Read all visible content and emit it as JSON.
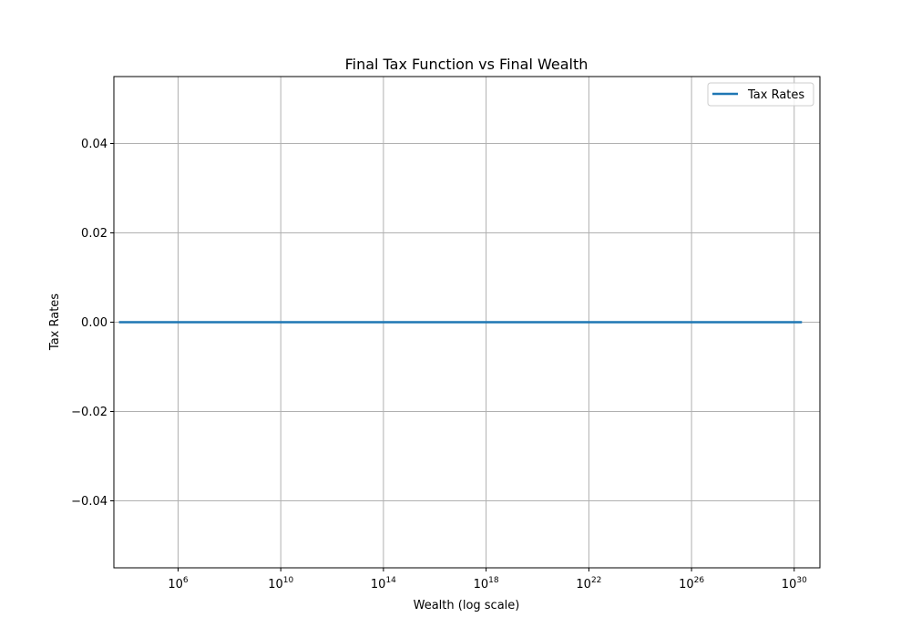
{
  "chart_data": {
    "type": "line",
    "title": "Final Tax Function vs Final Wealth",
    "xlabel": "Wealth (log scale)",
    "ylabel": "Tax Rates",
    "xscale": "log",
    "xlim": [
      3160.0,
      1e+31
    ],
    "ylim": [
      -0.055,
      0.055
    ],
    "x_ticks": [
      {
        "value": 1000000.0,
        "base": "10",
        "exp": "6"
      },
      {
        "value": 10000000000.0,
        "base": "10",
        "exp": "10"
      },
      {
        "value": 100000000000000.0,
        "base": "10",
        "exp": "14"
      },
      {
        "value": 1e+18,
        "base": "10",
        "exp": "18"
      },
      {
        "value": 1e+22,
        "base": "10",
        "exp": "22"
      },
      {
        "value": 1e+26,
        "base": "10",
        "exp": "26"
      },
      {
        "value": 1e+30,
        "base": "10",
        "exp": "30"
      }
    ],
    "y_ticks": [
      {
        "value": 0.04,
        "label": "0.04"
      },
      {
        "value": 0.02,
        "label": "0.02"
      },
      {
        "value": 0.0,
        "label": "0.00"
      },
      {
        "value": -0.02,
        "label": "−0.02"
      },
      {
        "value": -0.04,
        "label": "−0.04"
      }
    ],
    "grid": true,
    "legend_position": "top-right",
    "series": [
      {
        "name": "Tax Rates",
        "color": "#1f77b4",
        "x": [
          5000.0,
          1000000.0,
          10000000000.0,
          100000000000000.0,
          1e+18,
          1e+22,
          1e+26,
          1e+30,
          2e+30
        ],
        "y": [
          0,
          0,
          0,
          0,
          0,
          0,
          0,
          0,
          0
        ]
      }
    ]
  }
}
